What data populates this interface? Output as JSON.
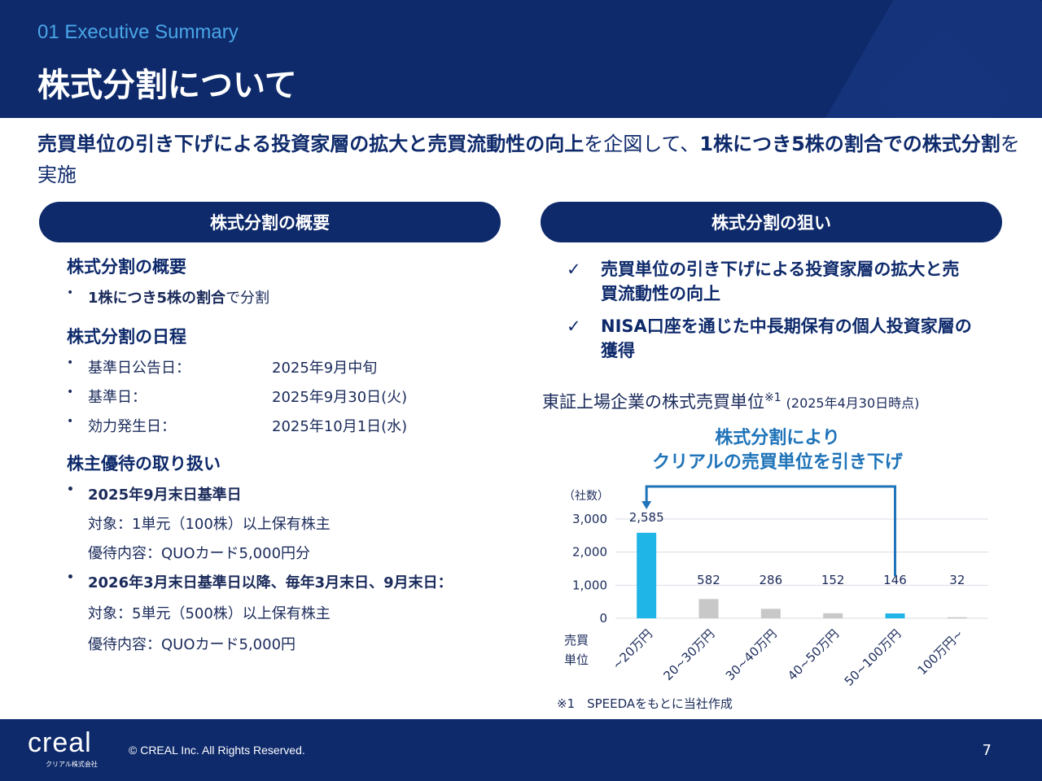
{
  "header": {
    "section_label": "01 Executive Summary",
    "title": "株式分割について"
  },
  "lead": {
    "part1_bold": "売買単位の引き下げによる投資家層の拡大と売買流動性の向上",
    "part2": "を企図して、",
    "part3_bold": "1株につき5株の割合での株式分割",
    "part4": "を実施"
  },
  "left_panel": {
    "pill_label": "株式分割の概要",
    "overview_heading": "株式分割の概要",
    "overview_bullet_bold": "1株につき5株の割合",
    "overview_bullet_rest": "で分割",
    "schedule_heading": "株式分割の日程",
    "schedule": [
      {
        "label": "基準日公告日：",
        "value": "2025年9月中旬"
      },
      {
        "label": "基準日：",
        "value": "2025年9月30日(火)"
      },
      {
        "label": "効力発生日：",
        "value": "2025年10月1日(水)"
      }
    ],
    "benefit_heading": "株主優待の取り扱い",
    "benefit1_title": "2025年9月末日基準日",
    "benefit1_target": "対象：1単元（100株）以上保有株主",
    "benefit1_content": "優待内容：QUOカード5,000円分",
    "benefit2_title": "2026年3月末日基準日以降、毎年3月末日、9月末日：",
    "benefit2_target": "対象：5単元（500株）以上保有株主",
    "benefit2_content": "優待内容：QUOカード5,000円"
  },
  "right_panel": {
    "pill_label": "株式分割の狙い",
    "check_mark": "✓",
    "aims": [
      "売買単位の引き下げによる投資家層の拡大と売買流動性の向上",
      "NISA口座を通じた中長期保有の個人投資家層の獲得"
    ],
    "chart_title": "東証上場企業の株式売買単位",
    "chart_title_note": "※1",
    "chart_asof": "(2025年4月30日時点)",
    "annotation_line1": "株式分割により",
    "annotation_line2": "クリアルの売買単位を引き下げ",
    "footnote": "※1　SPEEDAをもとに当社作成"
  },
  "chart_data": {
    "type": "bar",
    "title": "東証上場企業の株式売買単位",
    "ylabel": "（社数）",
    "xlabel": "売買単位",
    "categories": [
      "~20万円",
      "20~30万円",
      "30~40万円",
      "40~50万円",
      "50~100万円",
      "100万円~"
    ],
    "values": [
      2585,
      582,
      286,
      152,
      146,
      32
    ],
    "data_labels": [
      "2,585",
      "582",
      "286",
      "152",
      "146",
      "32"
    ],
    "yticks": [
      "0",
      "1,000",
      "2,000",
      "3,000"
    ],
    "ytick_values": [
      0,
      1000,
      2000,
      3000
    ],
    "ylim": [
      0,
      3000
    ],
    "grid": true,
    "highlight": [
      0,
      4
    ],
    "colors": {
      "highlight": "#1fb5e6",
      "normal": "#c8c8c8",
      "arrow": "#1e73b9"
    }
  },
  "footer": {
    "logo": "creal",
    "logo_sub": "クリアル株式会社",
    "copyright": "© CREAL Inc. All Rights Reserved.",
    "page_number": "7"
  }
}
